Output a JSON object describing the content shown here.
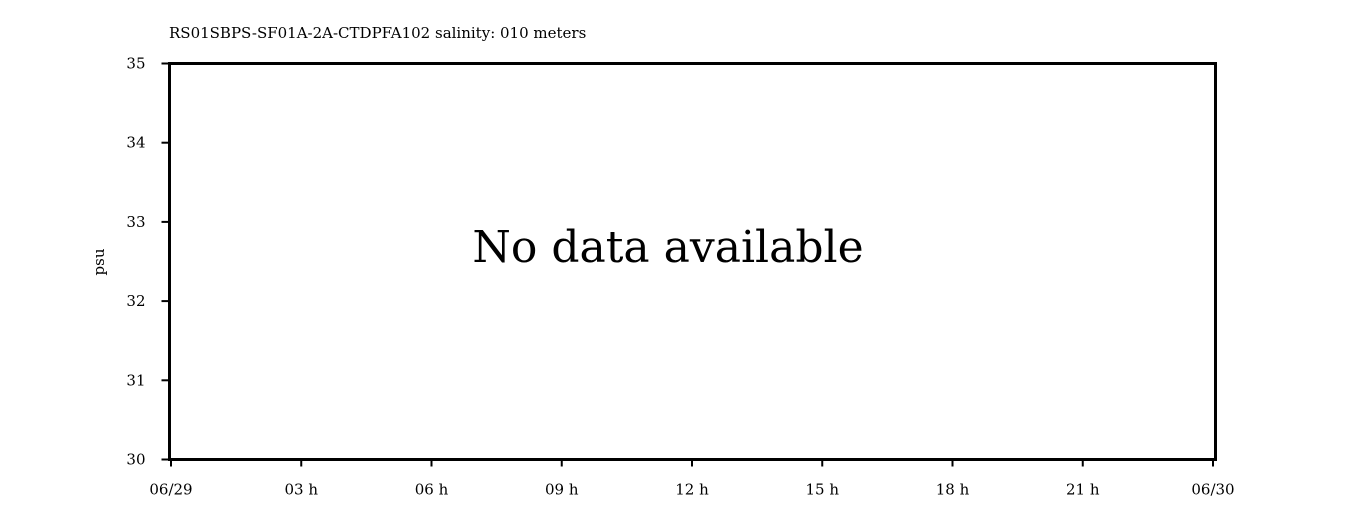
{
  "chart_data": {
    "type": "line",
    "title": "RS01SBPS-SF01A-2A-CTDPFA102 salinity: 010 meters",
    "xlabel": "",
    "ylabel": "psu",
    "ylim": [
      30,
      35
    ],
    "yticks": [
      30,
      31,
      32,
      33,
      34,
      35
    ],
    "xticks": [
      "06/29",
      "03 h",
      "06 h",
      "09 h",
      "12 h",
      "15 h",
      "18 h",
      "21 h",
      "06/30"
    ],
    "series": [],
    "grid": false,
    "annotation": "No data available"
  }
}
